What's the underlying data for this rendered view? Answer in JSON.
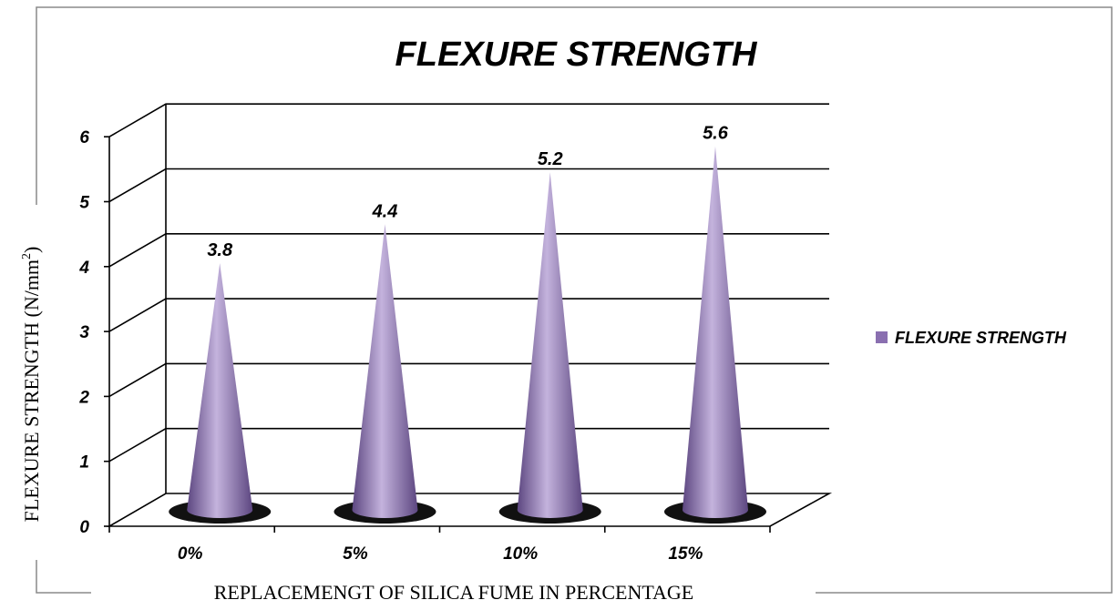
{
  "chart_data": {
    "type": "bar",
    "bar_shape": "cone-3d",
    "title": "FLEXURE STRENGTH",
    "categories": [
      "0%",
      "5%",
      "10%",
      "15%"
    ],
    "series": [
      {
        "name": "FLEXURE STRENGTH",
        "values": [
          3.8,
          4.4,
          5.2,
          5.6
        ]
      }
    ],
    "data_labels": [
      "3.8",
      "4.4",
      "5.2",
      "5.6"
    ],
    "xlabel": "REPLACEMENGT OF SILICA FUME IN PERCENTAGE",
    "ylabel": "FLEXURE STRENGTH (N/mm",
    "ylabel_superscript": "2",
    "ylabel_suffix": ")",
    "ylim": [
      0,
      6
    ],
    "yticks": [
      "0",
      "1",
      "2",
      "3",
      "4",
      "5",
      "6"
    ],
    "grid": true,
    "legend": "right",
    "colors": {
      "bar": "#8a6fb0",
      "bar_light": "#c4b3dd",
      "bar_dark": "#5c4680",
      "base_shadow": "#111111"
    }
  }
}
